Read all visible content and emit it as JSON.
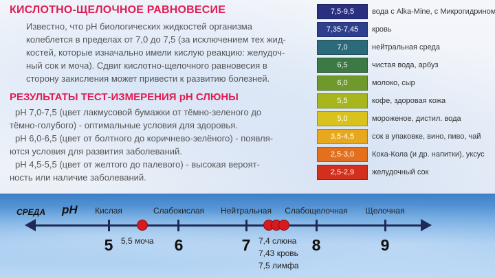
{
  "left": {
    "title": "КИСЛОТНО-ЩЕЛОЧНОЕ РАВНОВЕСИЕ",
    "intro_lines": [
      "Известно, что рН биологических жидкостей организма",
      "колеблется в пределах от 7,0 до 7,5 (за исключением тех жид-",
      "костей, которые изначально имели кислую реакцию: желудоч-",
      "ный сок и моча). Сдвиг кислотно-щелочного равновесия в",
      "сторону закисления может привести к развитию болезней."
    ],
    "results_title": "РЕЗУЛЬТАТЫ ТЕСТ-ИЗМЕРЕНИЯ рН СЛЮНЫ",
    "results_lines": [
      "рН 7,0-7,5 (цвет лакмусовой бумажки от тёмно-зеленого до",
      "тёмно-голубого) - оптимальные условия для здоровья.",
      "рН 6,0-6,5 (цвет от болтного до коричнево-зелёного) - появля-",
      "ются условия для развития заболеваний.",
      "рН 4,5-5,5 (цвет от желтого до палевого) - высокая вероят-",
      "ность или наличие заболеваний."
    ]
  },
  "ph_table": [
    {
      "value": "7,5-9,5",
      "desc": "вода с Alka-Mine, с Микрогидрином",
      "color": "#2a2f80"
    },
    {
      "value": "7,35-7,45",
      "desc": "кровь",
      "color": "#2d3f8d"
    },
    {
      "value": "7,0",
      "desc": "нейтральная среда",
      "color": "#2a6a7a"
    },
    {
      "value": "6,5",
      "desc": "чистая вода, арбуз",
      "color": "#3b7a45"
    },
    {
      "value": "6,0",
      "desc": "молоко, сыр",
      "color": "#6f9a2b"
    },
    {
      "value": "5,5",
      "desc": "кофе, здоровая кожа",
      "color": "#a6b61c"
    },
    {
      "value": "5,0",
      "desc": "мороженое, дистил. вода",
      "color": "#d8c21b"
    },
    {
      "value": "3,5-4,5",
      "desc": "сок в упаковке, вино, пиво, чай",
      "color": "#e8a81d"
    },
    {
      "value": "2,5-3,0",
      "desc": "Кока-Кола (и др. напитки), уксус",
      "color": "#e3701c"
    },
    {
      "value": "2,5-2,9",
      "desc": "желудочный сок",
      "color": "#d2301d"
    }
  ],
  "scale": {
    "sreda_label": "СРЕДА",
    "ph_label": "рН",
    "categories": [
      "Кислая",
      "Слабокислая",
      "Нейтральная",
      "Слабощелочная",
      "Щелочная"
    ],
    "numbers": [
      "5",
      "6",
      "7",
      "8",
      "9"
    ],
    "urine_label": "5,5 моча",
    "fluid_labels": [
      "7,4 слюна",
      "7,43 кровь",
      "7,5 лимфа"
    ],
    "marker_color": "#d71920",
    "axis_color": "#1e2a55"
  }
}
